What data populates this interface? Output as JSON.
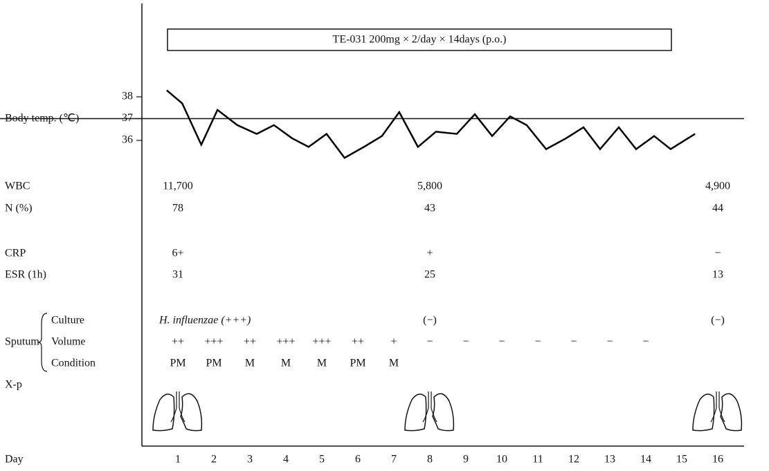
{
  "chart_data": {
    "type": "line",
    "treatment": "TE-031 200mg × 2/day × 14days (p.o.)",
    "x_label": "Day",
    "y_label": "Body temp. (℃)",
    "xlim": [
      0,
      16.5
    ],
    "xticks": [
      1,
      2,
      3,
      4,
      5,
      6,
      7,
      8,
      9,
      10,
      11,
      12,
      13,
      14,
      15,
      16
    ],
    "ylim": [
      35,
      39
    ],
    "yticks": [
      36,
      37,
      38
    ],
    "color": "#000000",
    "x": [
      0.69,
      1.12,
      1.65,
      2.1,
      2.65,
      3.19,
      3.67,
      4.17,
      4.63,
      5.13,
      5.63,
      6.17,
      6.67,
      7.15,
      7.67,
      8.17,
      8.75,
      9.25,
      9.73,
      10.23,
      10.69,
      11.23,
      11.79,
      12.27,
      12.73,
      13.25,
      13.73,
      14.23,
      14.69,
      15.37
    ],
    "values": [
      38.3,
      37.7,
      35.8,
      37.4,
      36.7,
      36.3,
      36.7,
      36.1,
      35.7,
      36.3,
      35.2,
      35.7,
      36.2,
      37.3,
      35.7,
      36.4,
      36.3,
      37.2,
      36.2,
      37.1,
      36.7,
      35.6,
      36.1,
      36.6,
      35.6,
      36.6,
      35.6,
      36.2,
      35.6,
      36.3
    ],
    "rows": [
      {
        "label": "WBC",
        "days": [
          1,
          8,
          16
        ],
        "values": [
          "11,700",
          "5,800",
          "4,900"
        ]
      },
      {
        "label": "N (%)",
        "days": [
          1,
          8,
          16
        ],
        "values": [
          "78",
          "43",
          "44"
        ]
      },
      {
        "label": "CRP",
        "days": [
          1,
          8,
          16
        ],
        "values": [
          "6+",
          "+",
          "−"
        ]
      },
      {
        "label": "ESR (1h)",
        "days": [
          1,
          8,
          16
        ],
        "values": [
          "31",
          "25",
          "13"
        ]
      }
    ],
    "sputum": {
      "label": "Sputum",
      "rows": [
        {
          "label": "Culture",
          "days": [
            1,
            8,
            16
          ],
          "values": [
            "H. influenzae (+++)",
            "(−)",
            "(−)"
          ]
        },
        {
          "label": "Volume",
          "days": [
            1,
            2,
            3,
            4,
            5,
            6,
            7,
            8,
            9,
            10,
            11,
            12,
            13,
            14
          ],
          "values": [
            "++",
            "+++",
            "++",
            "+++",
            "+++",
            "++",
            "+",
            "−",
            "−",
            "−",
            "−",
            "−",
            "−",
            "−"
          ]
        },
        {
          "label": "Condition",
          "days": [
            1,
            2,
            3,
            4,
            5,
            6,
            7
          ],
          "values": [
            "PM",
            "PM",
            "M",
            "M",
            "M",
            "PM",
            "M"
          ]
        }
      ]
    },
    "xray": {
      "label": "X-p",
      "days": [
        1,
        8,
        16
      ]
    }
  }
}
